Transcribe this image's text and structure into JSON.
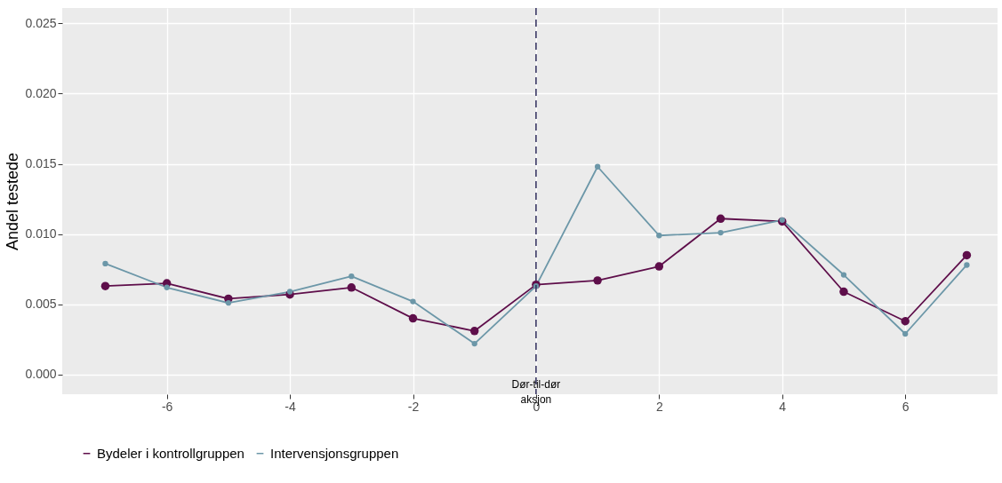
{
  "chart_data": {
    "type": "line",
    "ylabel": "Andel testede",
    "x": [
      -7,
      -6,
      -5,
      -4,
      -3,
      -2,
      -1,
      0,
      1,
      2,
      3,
      4,
      5,
      6,
      7
    ],
    "series": [
      {
        "name": "Bydeler i kontrollgruppen",
        "color": "#5e0e4a",
        "values": [
          0.0063,
          0.0065,
          0.0054,
          0.0057,
          0.0062,
          0.004,
          0.0031,
          0.0064,
          0.0067,
          0.0077,
          0.0111,
          0.0109,
          0.0059,
          0.0038,
          0.0085
        ]
      },
      {
        "name": "Intervensjonsgruppen",
        "color": "#6c97a8",
        "values": [
          0.0079,
          0.0062,
          0.0051,
          0.0059,
          0.007,
          0.0052,
          0.0022,
          0.0063,
          0.0148,
          0.0099,
          0.0101,
          0.011,
          0.0071,
          0.0029,
          0.0078
        ]
      }
    ],
    "xlim": [
      -7.7,
      7.5
    ],
    "ylim": [
      -0.0014,
      0.0261
    ],
    "xticks": [
      -6,
      -4,
      -2,
      0,
      2,
      4,
      6
    ],
    "yticks": [
      {
        "value": 0,
        "label": "0.000"
      },
      0.005,
      {
        "value": 0.01,
        "label": "0.010"
      },
      0.015,
      {
        "value": 0.02,
        "label": "0.020"
      },
      0.025
    ],
    "ref_lines": [
      {
        "axis": "x",
        "value": 0,
        "label": "Dør-til-dør aksjon",
        "color": "#2d2a5a",
        "line_style": "dashed"
      }
    ],
    "grid": true,
    "legend": "bottom",
    "marker": "circle",
    "line_style": "solid"
  }
}
